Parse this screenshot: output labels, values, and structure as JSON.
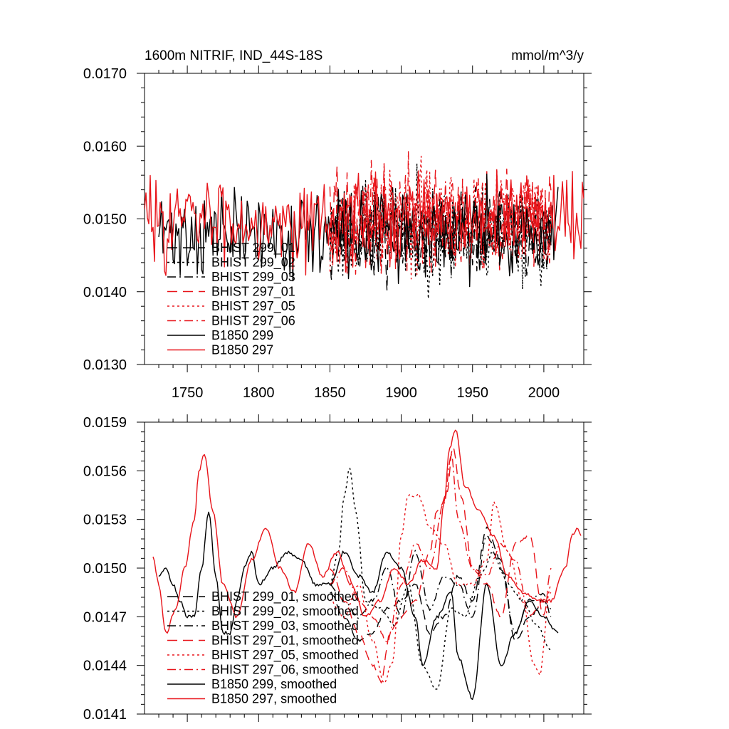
{
  "chart_data": [
    {
      "type": "line",
      "title_left": "1600m NITRIF, IND_44S-18S",
      "title_right": "mmol/m^3/y",
      "xlabel": "",
      "ylabel": "",
      "xlim": [
        1720,
        2028
      ],
      "ylim": [
        0.013,
        0.017
      ],
      "x_ticks": [
        1750,
        1800,
        1850,
        1900,
        1950,
        2000
      ],
      "x_tick_labels": [
        "1750",
        "1800",
        "1850",
        "1900",
        "1950",
        "2000"
      ],
      "y_ticks": [
        0.013,
        0.014,
        0.015,
        0.016,
        0.017
      ],
      "y_tick_labels": [
        "0.0130",
        "0.0140",
        "0.0150",
        "0.0160",
        "0.0170"
      ],
      "grid": false,
      "legend_position": "lower-left",
      "series": [
        {
          "name": "BHIST 299_01",
          "color": "#000000",
          "dash": "longdash",
          "x_range": [
            1850,
            2005
          ],
          "base": 0.0148,
          "noise": 0.0005,
          "seed": 11
        },
        {
          "name": "BHIST 299_02",
          "color": "#000000",
          "dash": "dot",
          "x_range": [
            1850,
            2005
          ],
          "base": 0.0148,
          "noise": 0.0006,
          "seed": 23
        },
        {
          "name": "BHIST 299_03",
          "color": "#000000",
          "dash": "dashdot",
          "x_range": [
            1850,
            2005
          ],
          "base": 0.0148,
          "noise": 0.0005,
          "seed": 37
        },
        {
          "name": "BHIST 297_01",
          "color": "#e8141a",
          "dash": "longdash",
          "x_range": [
            1850,
            2005
          ],
          "base": 0.015,
          "noise": 0.0006,
          "seed": 41
        },
        {
          "name": "BHIST 297_05",
          "color": "#e8141a",
          "dash": "dot",
          "x_range": [
            1850,
            2005
          ],
          "base": 0.015,
          "noise": 0.0006,
          "seed": 53
        },
        {
          "name": "BHIST 297_06",
          "color": "#e8141a",
          "dash": "dashdot",
          "x_range": [
            1850,
            2005
          ],
          "base": 0.015,
          "noise": 0.0006,
          "seed": 67
        },
        {
          "name": "B1850 299",
          "color": "#000000",
          "dash": "solid",
          "x_range": [
            1730,
            2010
          ],
          "base": 0.0148,
          "noise": 0.0005,
          "seed": 71
        },
        {
          "name": "B1850 297",
          "color": "#e8141a",
          "dash": "solid",
          "x_range": [
            1720,
            2028
          ],
          "base": 0.015,
          "noise": 0.0005,
          "seed": 83
        }
      ]
    },
    {
      "type": "line",
      "title_left": "",
      "title_right": "",
      "xlabel": "",
      "ylabel": "",
      "xlim": [
        1720,
        2028
      ],
      "ylim": [
        0.0141,
        0.0159
      ],
      "x_ticks": [
        1750,
        1800,
        1850,
        1900,
        1950,
        2000
      ],
      "x_tick_labels": [],
      "y_ticks": [
        0.0141,
        0.0144,
        0.0147,
        0.015,
        0.0153,
        0.0156,
        0.0159
      ],
      "y_tick_labels": [
        "0.0141",
        "0.0144",
        "0.0147",
        "0.0150",
        "0.0153",
        "0.0156",
        "0.0159"
      ],
      "grid": false,
      "legend_position": "lower-left",
      "series": [
        {
          "name": "BHIST 299_01, smoothed",
          "color": "#000000",
          "dash": "longdash",
          "x": [
            1850,
            1860,
            1870,
            1880,
            1890,
            1900,
            1910,
            1920,
            1930,
            1940,
            1950,
            1960,
            1970,
            1980,
            1990,
            2000,
            2005
          ],
          "y": [
            0.01485,
            0.0147,
            0.01455,
            0.0146,
            0.01475,
            0.0148,
            0.0149,
            0.0146,
            0.0147,
            0.01495,
            0.0148,
            0.01525,
            0.01505,
            0.01455,
            0.0147,
            0.0148,
            0.01475
          ]
        },
        {
          "name": "BHIST 299_02, smoothed",
          "color": "#000000",
          "dash": "dot",
          "x": [
            1850,
            1856,
            1860,
            1864,
            1868,
            1875,
            1885,
            1895,
            1905,
            1915,
            1925,
            1935,
            1945,
            1955,
            1965,
            1975,
            1985,
            1995,
            2005
          ],
          "y": [
            0.0149,
            0.0151,
            0.01545,
            0.01562,
            0.01535,
            0.0148,
            0.01475,
            0.01465,
            0.0149,
            0.0144,
            0.01425,
            0.01475,
            0.0147,
            0.01495,
            0.0151,
            0.0149,
            0.0148,
            0.01465,
            0.0145
          ]
        },
        {
          "name": "BHIST 299_03, smoothed",
          "color": "#000000",
          "dash": "dashdot",
          "x": [
            1850,
            1860,
            1870,
            1880,
            1890,
            1900,
            1910,
            1920,
            1930,
            1940,
            1950,
            1960,
            1970,
            1980,
            1990,
            2000,
            2005
          ],
          "y": [
            0.0149,
            0.0148,
            0.0147,
            0.0148,
            0.015,
            0.0147,
            0.0151,
            0.01475,
            0.01495,
            0.0149,
            0.0147,
            0.0152,
            0.015,
            0.0146,
            0.0148,
            0.01485,
            0.0147
          ]
        },
        {
          "name": "BHIST 297_01, smoothed",
          "color": "#e8141a",
          "dash": "longdash",
          "x": [
            1850,
            1860,
            1870,
            1880,
            1886,
            1892,
            1900,
            1910,
            1920,
            1925,
            1932,
            1936,
            1942,
            1950,
            1960,
            1970,
            1980,
            1990,
            2000,
            2005
          ],
          "y": [
            0.015,
            0.0148,
            0.0146,
            0.0144,
            0.0143,
            0.0146,
            0.0147,
            0.0148,
            0.0151,
            0.01535,
            0.01545,
            0.01575,
            0.01545,
            0.015,
            0.0149,
            0.0147,
            0.01515,
            0.0152,
            0.0147,
            0.015
          ]
        },
        {
          "name": "BHIST 297_05, smoothed",
          "color": "#e8141a",
          "dash": "dot",
          "x": [
            1850,
            1860,
            1870,
            1880,
            1888,
            1894,
            1900,
            1905,
            1912,
            1920,
            1930,
            1940,
            1950,
            1960,
            1965,
            1975,
            1985,
            1993,
            1997,
            2005
          ],
          "y": [
            0.0148,
            0.0147,
            0.0149,
            0.01455,
            0.0143,
            0.01442,
            0.0152,
            0.01545,
            0.01545,
            0.01525,
            0.01515,
            0.0149,
            0.0149,
            0.01505,
            0.0154,
            0.0151,
            0.0148,
            0.0144,
            0.01435,
            0.0149
          ]
        },
        {
          "name": "BHIST 297_06, smoothed",
          "color": "#e8141a",
          "dash": "dashdot",
          "x": [
            1850,
            1860,
            1870,
            1880,
            1890,
            1900,
            1910,
            1920,
            1930,
            1935,
            1940,
            1950,
            1960,
            1970,
            1980,
            1990,
            2000,
            2005
          ],
          "y": [
            0.0149,
            0.015,
            0.0148,
            0.0147,
            0.01455,
            0.0149,
            0.01515,
            0.015,
            0.0154,
            0.0157,
            0.0153,
            0.015,
            0.01495,
            0.01515,
            0.01505,
            0.0147,
            0.0148,
            0.01485
          ]
        },
        {
          "name": "B1850 299, smoothed",
          "color": "#000000",
          "dash": "solid",
          "x": [
            1730,
            1735,
            1740,
            1745,
            1750,
            1755,
            1760,
            1765,
            1770,
            1775,
            1780,
            1785,
            1790,
            1795,
            1800,
            1810,
            1820,
            1830,
            1840,
            1850,
            1860,
            1870,
            1880,
            1890,
            1900,
            1910,
            1915,
            1925,
            1935,
            1940,
            1950,
            1960,
            1970,
            1980,
            1990,
            2000,
            2010
          ],
          "y": [
            0.01495,
            0.015,
            0.0149,
            0.0148,
            0.0147,
            0.0147,
            0.015,
            0.01535,
            0.01495,
            0.0146,
            0.0146,
            0.0148,
            0.015,
            0.0151,
            0.0149,
            0.015,
            0.0151,
            0.01505,
            0.0149,
            0.0149,
            0.0151,
            0.01495,
            0.01485,
            0.0151,
            0.015,
            0.0147,
            0.0144,
            0.0147,
            0.01485,
            0.01445,
            0.0142,
            0.0149,
            0.0144,
            0.0146,
            0.0148,
            0.0147,
            0.0146
          ]
        },
        {
          "name": "B1850 297, smoothed",
          "color": "#e8141a",
          "dash": "solid",
          "x": [
            1726,
            1730,
            1735,
            1742,
            1748,
            1755,
            1758,
            1762,
            1768,
            1775,
            1785,
            1795,
            1805,
            1815,
            1825,
            1835,
            1845,
            1855,
            1865,
            1875,
            1885,
            1895,
            1905,
            1915,
            1925,
            1930,
            1934,
            1938,
            1945,
            1955,
            1965,
            1975,
            1985,
            1995,
            2005,
            2015,
            2020,
            2024,
            2026
          ],
          "y": [
            0.01507,
            0.0149,
            0.0146,
            0.01475,
            0.015,
            0.0153,
            0.0156,
            0.0157,
            0.01535,
            0.0149,
            0.0147,
            0.01505,
            0.01525,
            0.015,
            0.01485,
            0.01515,
            0.01495,
            0.0151,
            0.0149,
            0.0147,
            0.0148,
            0.015,
            0.0149,
            0.01505,
            0.015,
            0.0154,
            0.01575,
            0.01585,
            0.0155,
            0.01535,
            0.0152,
            0.01495,
            0.01485,
            0.0148,
            0.0148,
            0.015,
            0.0152,
            0.01525,
            0.0152
          ]
        }
      ]
    }
  ]
}
